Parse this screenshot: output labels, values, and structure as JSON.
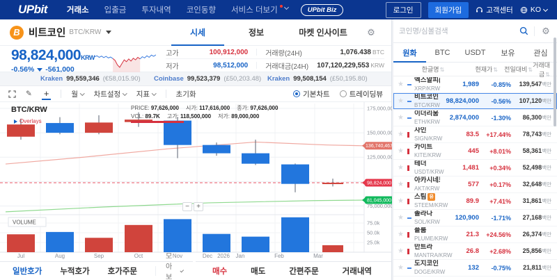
{
  "colors": {
    "navy": "#0b3690",
    "accent": "#1763c6",
    "up": "#d6313e",
    "down": "#1763c6",
    "candle_up": "#d0443c",
    "candle_down": "#2276dd",
    "ma": "#e2756a",
    "ma_line": "#f0a8a0",
    "low_badge": "#11b95c",
    "low_line": "#8fd98f",
    "price_badge": "#e5384c",
    "bitcoin": "#f7931a"
  },
  "nav": {
    "logo": "UPbit",
    "items": [
      {
        "label": "거래소",
        "active": true
      },
      {
        "label": "입출금"
      },
      {
        "label": "투자내역"
      },
      {
        "label": "코인동향"
      },
      {
        "label": "서비스 더보기",
        "dot": true,
        "chevron": true
      }
    ],
    "biz": "UPbit Biz",
    "login": "로그인",
    "signup": "회원가입",
    "support": "고객센터",
    "lang": "KO"
  },
  "coin": {
    "icon_letter": "B",
    "name": "비트코인",
    "pair": "BTC/KRW",
    "tabs": [
      {
        "label": "시세",
        "active": true
      },
      {
        "label": "정보"
      },
      {
        "label": "마켓 인사이트",
        "wide": true
      }
    ]
  },
  "price": {
    "value": "98,824,000",
    "unit": "KRW",
    "change_pct": "-0.56%",
    "change_abs": "-561,000"
  },
  "stats": {
    "high_label": "고가",
    "high": "100,912,000",
    "low_label": "저가",
    "low": "98,512,000",
    "vol_label": "거래량(24H)",
    "vol": "1,076.438",
    "vol_unit": "BTC",
    "amt_label": "거래대금(24H)",
    "amt": "107,120,229,553",
    "amt_unit": "KRW"
  },
  "tickers": [
    {
      "ex": "Kraken",
      "val": "99,559,346",
      "sub": "(€58,015.90)"
    },
    {
      "ex": "Coinbase",
      "val": "99,523,379",
      "sub": "(£50,203.48)"
    },
    {
      "ex": "Kraken",
      "val": "99,508,154",
      "sub": "(£50,195.80)"
    }
  ],
  "toolbar": {
    "period": "월",
    "settings": "차트설정",
    "indicators": "지표",
    "reset": "초기화",
    "basic": "기본차트",
    "tradingview": "트레이딩뷰"
  },
  "legend": {
    "symbol": "BTC/KRW",
    "overlays": "Overlays",
    "price_label": "PRICE:",
    "price": "97,626,000",
    "vol_label": "VOL:",
    "vol": "89.7K",
    "open_label": "시가:",
    "open": "117,616,000",
    "high_label": "고가:",
    "high": "118,500,000",
    "close_label": "종가:",
    "close": "97,626,000",
    "low_label": "저가:",
    "low": "89,000,000",
    "volume_title": "VOLUME"
  },
  "chart_data": {
    "type": "candlestick",
    "unit": "million KRW",
    "candles": [
      {
        "m": "Jul",
        "o": 146,
        "h": 164.5,
        "l": 143,
        "c": 158.5,
        "dir": "up",
        "vol": 46
      },
      {
        "m": "Aug",
        "o": 160,
        "h": 166,
        "l": 148.5,
        "c": 150,
        "dir": "down",
        "vol": 52
      },
      {
        "m": "Sep",
        "o": 150,
        "h": 168,
        "l": 148.5,
        "c": 160.5,
        "dir": "up",
        "vol": 37
      },
      {
        "m": "Oct",
        "o": 161,
        "h": 171,
        "l": 156,
        "c": 163.5,
        "dir": "up",
        "vol": 70
      },
      {
        "m": "Nov",
        "o": 162.5,
        "h": 166,
        "l": 124,
        "c": 137.5,
        "dir": "down",
        "vol": 85
      },
      {
        "m": "Dec",
        "o": 137.5,
        "h": 140,
        "l": 126.5,
        "c": 129,
        "dir": "down",
        "vol": 47
      },
      {
        "m": "Jan",
        "o": 129,
        "h": 143,
        "l": 117,
        "c": 118.3,
        "dir": "down",
        "vol": 40
      },
      {
        "m": "Feb",
        "o": 117.616,
        "h": 118.5,
        "l": 89,
        "c": 97.626,
        "dir": "down",
        "vol": 89.7
      },
      {
        "m": "Mar",
        "o": 97.626,
        "h": 103,
        "l": 95,
        "c": 98.824,
        "dir": "up",
        "vol": 18
      }
    ],
    "x_centers": [
      30,
      86,
      142,
      199,
      255,
      311,
      367,
      424,
      478
    ],
    "x_labels": [
      [
        "Jul",
        30
      ],
      [
        "Aug",
        86
      ],
      [
        "Sep",
        142
      ],
      [
        "Oct",
        199
      ],
      [
        "Nov",
        255
      ],
      [
        "Dec",
        298
      ],
      [
        "2026",
        321
      ],
      [
        "Jan",
        345
      ],
      [
        "Feb",
        401
      ],
      [
        "Mar",
        457
      ]
    ],
    "price_ticks": [
      [
        175,
        "175,000,000"
      ],
      [
        150,
        "150,000,000"
      ],
      [
        125,
        "125,000,000"
      ],
      [
        100,
        "100,000,000"
      ],
      [
        75,
        "75,000,000"
      ]
    ],
    "vol_ticks": [
      [
        75,
        "75.0k"
      ],
      [
        50,
        "50.0k"
      ],
      [
        25,
        "25.0k"
      ]
    ],
    "badges": [
      {
        "price": 136.74,
        "label": "136,740,467",
        "color": "#e2756a"
      },
      {
        "price": 98.824,
        "label": "98,824,000",
        "color": "#e5384c"
      },
      {
        "price": 81.045,
        "label": "81,045,000",
        "color": "#11b95c"
      }
    ],
    "current_price": 98.824,
    "ma_main": [
      [
        8,
        118
      ],
      [
        120,
        125
      ],
      [
        240,
        133.5
      ],
      [
        367,
        140.5
      ],
      [
        470,
        137.5
      ],
      [
        523,
        136.7
      ]
    ],
    "ma_low": [
      [
        8,
        69
      ],
      [
        150,
        74
      ],
      [
        300,
        78.2
      ],
      [
        450,
        80.5
      ],
      [
        523,
        81.0
      ]
    ],
    "sparkline": [
      52,
      55,
      50,
      54,
      49,
      53,
      48,
      51,
      46,
      40,
      26,
      18,
      30,
      42,
      36,
      45,
      38,
      47,
      42,
      50,
      45,
      52,
      48,
      55,
      50,
      57,
      53,
      58
    ]
  },
  "order": {
    "left": [
      {
        "label": "일반호가",
        "cls": "blue"
      },
      {
        "label": "누적호가"
      },
      {
        "label": "호가주문"
      }
    ],
    "collapse": "모아보기",
    "right": [
      {
        "label": "매수",
        "cls": "red"
      },
      {
        "label": "매도"
      },
      {
        "label": "간편주문"
      },
      {
        "label": "거래내역"
      }
    ]
  },
  "sidebar": {
    "search_placeholder": "코인명/심볼검색",
    "tabs": [
      {
        "label": "원화",
        "active": true
      },
      {
        "label": "BTC"
      },
      {
        "label": "USDT"
      },
      {
        "label": "보유"
      },
      {
        "label": "관심"
      }
    ],
    "headers": [
      "한글명",
      "현재가",
      "전일대비",
      "거래대금"
    ],
    "vol_suffix": "백만",
    "rows": [
      {
        "name": "엑스알피(리플)",
        "pair": "XRP/KRW",
        "price": "1,989",
        "change": "-0.85%",
        "vol": "139,547",
        "dir": "down"
      },
      {
        "name": "비트코인",
        "pair": "BTC/KRW",
        "price": "98,824,000",
        "change": "-0.56%",
        "vol": "107,120",
        "dir": "down",
        "selected": true
      },
      {
        "name": "이더리움",
        "pair": "ETH/KRW",
        "price": "2,874,000",
        "change": "-1.30%",
        "vol": "86,300",
        "dir": "down"
      },
      {
        "name": "사인",
        "pair": "SIGN/KRW",
        "price": "83.5",
        "change": "+17.44%",
        "vol": "78,743",
        "dir": "up"
      },
      {
        "name": "카이트",
        "pair": "KITE/KRW",
        "price": "445",
        "change": "+8.01%",
        "vol": "58,361",
        "dir": "up"
      },
      {
        "name": "테더",
        "pair": "USDT/KRW",
        "price": "1,481",
        "change": "+0.34%",
        "vol": "52,498",
        "dir": "up"
      },
      {
        "name": "아카시네트워크",
        "badge": "주",
        "badge_bg": "#f08c2e",
        "pair": "AKT/KRW",
        "price": "577",
        "change": "+0.17%",
        "vol": "32,648",
        "dir": "up"
      },
      {
        "name": "스팀",
        "badge": "유",
        "badge_bg": "#f08c2e",
        "pair": "STEEM/KRW",
        "price": "89.9",
        "change": "+7.41%",
        "vol": "31,861",
        "dir": "up"
      },
      {
        "name": "솔라나",
        "pair": "SOL/KRW",
        "price": "120,900",
        "change": "-1.71%",
        "vol": "27,168",
        "dir": "down"
      },
      {
        "name": "플룸",
        "pair": "PLUME/KRW",
        "price": "21.3",
        "change": "+24.56%",
        "vol": "26,374",
        "dir": "up"
      },
      {
        "name": "만트라",
        "pair": "MANTRA/KRW",
        "price": "26.8",
        "change": "+2.68%",
        "vol": "25,856",
        "dir": "up"
      },
      {
        "name": "도지코인",
        "badge": "이",
        "badge_bg": "#5b5fd6",
        "pair": "DOGE/KRW",
        "price": "132",
        "change": "-0.75%",
        "vol": "21,811",
        "dir": "down"
      }
    ]
  }
}
